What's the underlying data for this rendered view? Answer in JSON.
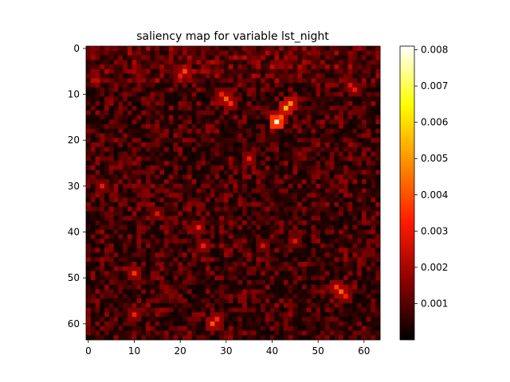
{
  "chart_data": {
    "type": "heatmap",
    "title": "saliency map for variable lst_night",
    "xlabel": "",
    "ylabel": "",
    "grid_size": [
      64,
      64
    ],
    "x_ticks": [
      0,
      10,
      20,
      30,
      40,
      50,
      60
    ],
    "y_ticks": [
      0,
      10,
      20,
      30,
      40,
      50,
      60
    ],
    "y_axis_inverted": true,
    "colormap": "hot",
    "colormap_stops": [
      "#000000",
      "#8b0000",
      "#ff1a00",
      "#ff8c00",
      "#ffff00",
      "#ffffff"
    ],
    "vmin": 0.0,
    "vmax": 0.0081,
    "colorbar_ticks": [
      "0.001",
      "0.002",
      "0.003",
      "0.004",
      "0.005",
      "0.006",
      "0.007",
      "0.008"
    ],
    "background_range": [
      0.0002,
      0.0018
    ],
    "hotspots": [
      {
        "x": 41,
        "y": 16,
        "value": 0.0078
      },
      {
        "x": 43,
        "y": 13,
        "value": 0.0055
      },
      {
        "x": 44,
        "y": 12,
        "value": 0.0048
      },
      {
        "x": 42,
        "y": 15,
        "value": 0.0042
      },
      {
        "x": 30,
        "y": 11,
        "value": 0.0042
      },
      {
        "x": 31,
        "y": 12,
        "value": 0.0035
      },
      {
        "x": 29,
        "y": 10,
        "value": 0.0032
      },
      {
        "x": 21,
        "y": 5,
        "value": 0.0038
      },
      {
        "x": 20,
        "y": 6,
        "value": 0.003
      },
      {
        "x": 55,
        "y": 53,
        "value": 0.0042
      },
      {
        "x": 54,
        "y": 52,
        "value": 0.0036
      },
      {
        "x": 56,
        "y": 54,
        "value": 0.0032
      },
      {
        "x": 27,
        "y": 60,
        "value": 0.004
      },
      {
        "x": 28,
        "y": 59,
        "value": 0.0034
      },
      {
        "x": 10,
        "y": 49,
        "value": 0.0036
      },
      {
        "x": 10,
        "y": 58,
        "value": 0.0032
      },
      {
        "x": 24,
        "y": 39,
        "value": 0.0033
      },
      {
        "x": 25,
        "y": 43,
        "value": 0.0032
      },
      {
        "x": 35,
        "y": 24,
        "value": 0.0032
      },
      {
        "x": 58,
        "y": 9,
        "value": 0.003
      },
      {
        "x": 57,
        "y": 8,
        "value": 0.0028
      },
      {
        "x": 3,
        "y": 30,
        "value": 0.003
      },
      {
        "x": 15,
        "y": 36,
        "value": 0.0028
      },
      {
        "x": 45,
        "y": 42,
        "value": 0.0028
      },
      {
        "x": 38,
        "y": 43,
        "value": 0.0027
      }
    ]
  }
}
